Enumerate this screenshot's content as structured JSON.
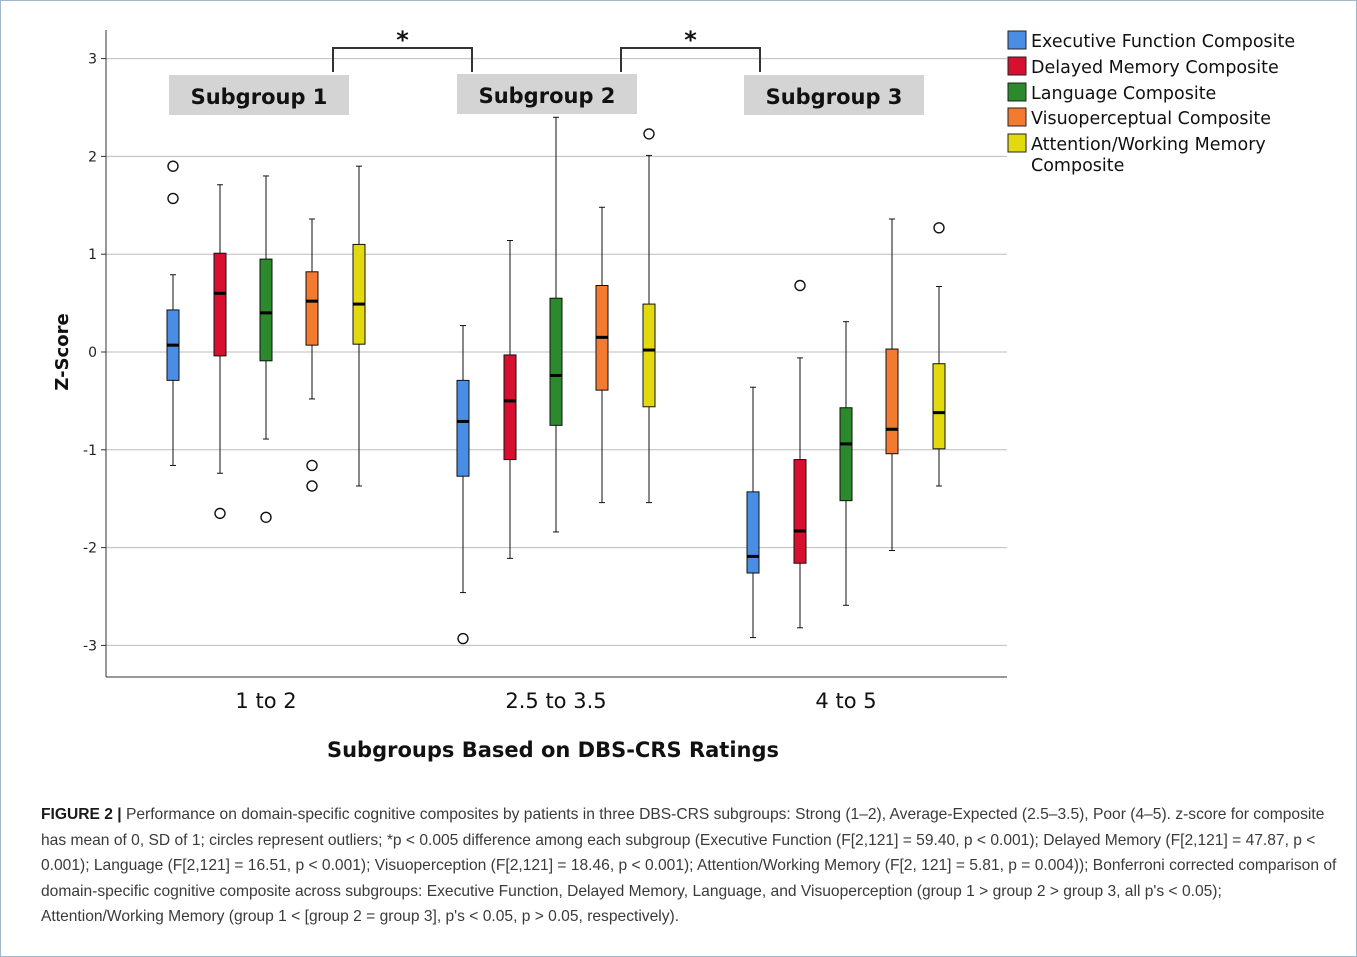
{
  "figure": {
    "label": "FIGURE 2 |",
    "caption": " Performance on domain-specific cognitive composites by patients in three DBS-CRS subgroups: Strong (1–2), Average-Expected (2.5–3.5), Poor (4–5). z-score for composite has mean of 0, SD of 1; circles represent outliers; *p < 0.005 difference among each subgroup (Executive Function (F[2,121] = 59.40, p < 0.001); Delayed Memory (F[2,121] = 47.87, p < 0.001); Language (F[2,121] = 16.51, p < 0.001); Visuoperception (F[2,121] = 18.46, p < 0.001); Attention/Working Memory (F[2, 121] = 5.81, p = 0.004)); Bonferroni corrected comparison of domain-specific cognitive composite across subgroups: Executive Function, Delayed Memory, Language, and Visuoperception (group 1 > group 2 > group 3, all p's < 0.05); Attention/Working Memory (group 1 < [group 2 = group 3], p's < 0.05, p > 0.05, respectively)."
  },
  "chart_data": {
    "type": "boxplot",
    "ylabel": "Z-Score",
    "xlabel": "Subgroups Based on DBS-CRS Ratings",
    "ylim": [
      -3.3,
      3.1
    ],
    "yticks": [
      -3,
      -2,
      -1,
      0,
      1,
      2,
      3
    ],
    "grid": true,
    "legend_position": "top-right",
    "categories": [
      "1 to 2",
      "2.5 to 3.5",
      "4 to 5"
    ],
    "subgroup_labels": [
      "Subgroup 1",
      "Subgroup 2",
      "Subgroup 3"
    ],
    "significance_marker": "*",
    "series": [
      {
        "name": "Executive Function Composite",
        "color": "#4a8de4",
        "boxes": [
          {
            "min": -1.16,
            "q1": -0.29,
            "median": 0.07,
            "q3": 0.43,
            "max": 0.79,
            "outliers": [
              1.9,
              1.57
            ]
          },
          {
            "min": -2.46,
            "q1": -1.27,
            "median": -0.71,
            "q3": -0.29,
            "max": 0.27,
            "outliers": [
              -2.93
            ]
          },
          {
            "min": -2.92,
            "q1": -2.26,
            "median": -2.09,
            "q3": -1.43,
            "max": -0.36,
            "outliers": []
          }
        ]
      },
      {
        "name": "Delayed Memory Composite",
        "color": "#d8102f",
        "boxes": [
          {
            "min": -1.24,
            "q1": -0.04,
            "median": 0.6,
            "q3": 1.01,
            "max": 1.71,
            "outliers": [
              -1.65
            ]
          },
          {
            "min": -2.11,
            "q1": -1.1,
            "median": -0.5,
            "q3": -0.03,
            "max": 1.14,
            "outliers": []
          },
          {
            "min": -2.82,
            "q1": -2.16,
            "median": -1.83,
            "q3": -1.1,
            "max": -0.06,
            "outliers": [
              0.68
            ]
          }
        ]
      },
      {
        "name": "Language Composite",
        "color": "#2c8a2c",
        "boxes": [
          {
            "min": -0.89,
            "q1": -0.09,
            "median": 0.4,
            "q3": 0.95,
            "max": 1.8,
            "outliers": [
              -1.69
            ]
          },
          {
            "min": -1.84,
            "q1": -0.75,
            "median": -0.24,
            "q3": 0.55,
            "max": 2.4,
            "outliers": []
          },
          {
            "min": -2.59,
            "q1": -1.52,
            "median": -0.94,
            "q3": -0.57,
            "max": 0.31,
            "outliers": []
          }
        ]
      },
      {
        "name": "Visuoperceptual Composite",
        "color": "#f47a30",
        "boxes": [
          {
            "min": -0.48,
            "q1": 0.07,
            "median": 0.52,
            "q3": 0.82,
            "max": 1.36,
            "outliers": [
              -1.16,
              -1.37
            ]
          },
          {
            "min": -1.54,
            "q1": -0.39,
            "median": 0.15,
            "q3": 0.68,
            "max": 1.48,
            "outliers": []
          },
          {
            "min": -2.03,
            "q1": -1.04,
            "median": -0.79,
            "q3": 0.03,
            "max": 1.36,
            "outliers": []
          }
        ]
      },
      {
        "name": "Attention/Working Memory Composite",
        "legend_lines": [
          "Attention/Working Memory",
          "Composite"
        ],
        "color": "#e3d90f",
        "boxes": [
          {
            "min": -1.37,
            "q1": 0.08,
            "median": 0.49,
            "q3": 1.1,
            "max": 1.9,
            "outliers": []
          },
          {
            "min": -1.54,
            "q1": -0.56,
            "median": 0.02,
            "q3": 0.49,
            "max": 2.01,
            "outliers": [
              2.23
            ]
          },
          {
            "min": -1.37,
            "q1": -0.99,
            "median": -0.62,
            "q3": -0.12,
            "max": 0.67,
            "outliers": [
              1.27
            ]
          }
        ]
      }
    ]
  }
}
